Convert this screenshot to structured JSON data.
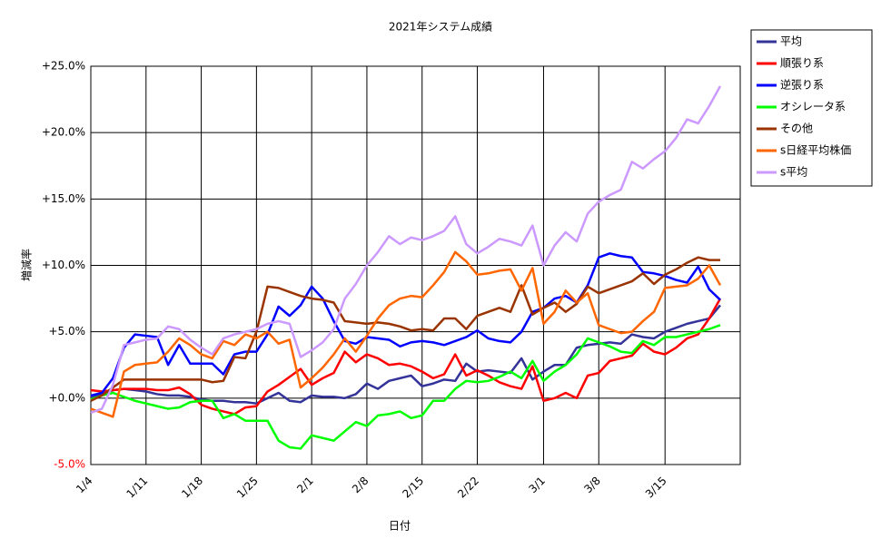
{
  "chart_data": {
    "type": "line",
    "title": "2021年システム成績",
    "x_label": "日付",
    "y_label": "増減率",
    "categories": [
      "1/4",
      null,
      null,
      null,
      null,
      "1/11",
      null,
      null,
      null,
      null,
      "1/18",
      null,
      null,
      null,
      null,
      "1/25",
      null,
      null,
      null,
      null,
      "2/1",
      null,
      null,
      null,
      null,
      "2/8",
      null,
      null,
      null,
      null,
      "2/15",
      null,
      null,
      null,
      null,
      "2/22",
      null,
      null,
      null,
      null,
      null,
      "3/1",
      null,
      null,
      null,
      null,
      "3/8",
      null,
      null,
      null,
      null,
      null,
      "3/15",
      null,
      null,
      null,
      null,
      null
    ],
    "ylim": [
      -5,
      25
    ],
    "yticks": [
      {
        "value": -5,
        "label": "-5.0%"
      },
      {
        "value": 0,
        "label": "+0.0%"
      },
      {
        "value": 5,
        "label": "+5.0%"
      },
      {
        "value": 10,
        "label": "+10.0%"
      },
      {
        "value": 15,
        "label": "+15.0%"
      },
      {
        "value": 20,
        "label": "+20.0%"
      },
      {
        "value": 25,
        "label": "+25.0%"
      }
    ],
    "negative_label_color": "#ff0000",
    "grid": true,
    "legend": "right",
    "series": [
      {
        "name": "平均",
        "color": "#333399",
        "values": [
          0,
          0.3,
          0.6,
          0.7,
          0.6,
          0.5,
          0.3,
          0.2,
          0.2,
          0.1,
          -0.1,
          -0.2,
          -0.2,
          -0.3,
          -0.3,
          -0.4,
          0,
          0.4,
          -0.2,
          -0.3,
          0.2,
          0.1,
          0.1,
          0,
          0.3,
          1.1,
          0.7,
          1.3,
          1.5,
          1.7,
          0.9,
          1.1,
          1.4,
          1.3,
          2.6,
          2.0,
          2.1,
          2.0,
          1.9,
          3.0,
          1.4,
          2.0,
          2.5,
          2.5,
          3.8,
          4.0,
          4.1,
          4.2,
          4.1,
          4.8,
          4.6,
          4.5,
          5.0,
          5.3,
          5.6,
          5.8,
          6.0,
          7.0
        ]
      },
      {
        "name": "順張り系",
        "color": "#ff0000",
        "values": [
          0.6,
          0.5,
          0.6,
          0.7,
          0.7,
          0.7,
          0.6,
          0.6,
          0.8,
          0.3,
          -0.5,
          -0.8,
          -1.0,
          -1.2,
          -0.7,
          -0.6,
          0.5,
          1.0,
          1.6,
          2.2,
          1.0,
          1.5,
          1.9,
          3.5,
          2.7,
          3.3,
          3.0,
          2.5,
          2.6,
          2.4,
          2.0,
          1.5,
          1.8,
          3.3,
          1.7,
          2.1,
          1.7,
          1.2,
          0.9,
          0.7,
          2.4,
          -0.2,
          0.0,
          0.4,
          0.0,
          1.7,
          1.9,
          2.8,
          3.0,
          3.2,
          4.1,
          3.5,
          3.3,
          3.8,
          4.5,
          4.8,
          6.0,
          7.5
        ]
      },
      {
        "name": "逆張り系",
        "color": "#0000ff",
        "values": [
          0.2,
          0.4,
          1.5,
          3.8,
          4.8,
          4.7,
          4.6,
          2.5,
          4.0,
          2.6,
          2.6,
          2.6,
          1.8,
          3.3,
          3.5,
          3.5,
          4.8,
          6.9,
          6.2,
          7.0,
          8.4,
          7.5,
          5.8,
          4.3,
          4.1,
          4.6,
          4.5,
          4.4,
          3.9,
          4.2,
          4.3,
          4.2,
          4.0,
          4.3,
          4.6,
          5.1,
          4.5,
          4.3,
          4.2,
          5.0,
          6.5,
          6.8,
          7.5,
          7.7,
          7.2,
          8.5,
          10.6,
          10.9,
          10.7,
          10.6,
          9.5,
          9.4,
          9.2,
          8.9,
          8.7,
          9.9,
          8.2,
          7.4
        ]
      },
      {
        "name": "オシレータ系",
        "color": "#00ff00",
        "values": [
          -0.1,
          0.2,
          0.4,
          0.1,
          -0.2,
          -0.4,
          -0.6,
          -0.8,
          -0.7,
          -0.3,
          -0.2,
          -0.2,
          -1.5,
          -1.2,
          -1.7,
          -1.7,
          -1.7,
          -3.2,
          -3.7,
          -3.8,
          -2.8,
          -3.0,
          -3.2,
          -2.5,
          -1.8,
          -2.1,
          -1.3,
          -1.2,
          -1.0,
          -1.5,
          -1.3,
          -0.2,
          -0.2,
          0.7,
          1.3,
          1.2,
          1.3,
          1.6,
          2.0,
          1.5,
          2.8,
          1.3,
          2.0,
          2.5,
          3.3,
          4.5,
          4.2,
          3.9,
          3.5,
          3.4,
          4.3,
          4.0,
          4.6,
          4.6,
          4.8,
          5.0,
          5.2,
          5.5
        ]
      },
      {
        "name": "その他",
        "color": "#993300",
        "values": [
          -0.2,
          0.2,
          0.8,
          1.4,
          1.4,
          1.4,
          1.4,
          1.4,
          1.4,
          1.4,
          1.4,
          1.2,
          1.3,
          3.1,
          3.0,
          5.0,
          8.4,
          8.3,
          8.0,
          7.7,
          7.5,
          7.4,
          7.2,
          5.8,
          5.7,
          5.6,
          5.7,
          5.6,
          5.4,
          5.1,
          5.2,
          5.1,
          6.0,
          6.0,
          5.2,
          6.2,
          6.5,
          6.8,
          6.5,
          8.5,
          6.3,
          6.8,
          7.2,
          6.5,
          7.1,
          8.4,
          7.9,
          8.2,
          8.5,
          8.8,
          9.4,
          8.6,
          9.3,
          9.7,
          10.2,
          10.6,
          10.4,
          10.4
        ]
      },
      {
        "name": "s日経平均株価",
        "color": "#ff6600",
        "values": [
          -0.8,
          -1.1,
          -1.4,
          2.0,
          2.5,
          2.6,
          2.7,
          3.5,
          4.5,
          4.0,
          3.3,
          3.0,
          4.3,
          4.0,
          4.8,
          4.5,
          5.0,
          4.1,
          4.4,
          0.8,
          1.5,
          2.3,
          3.3,
          4.5,
          3.5,
          4.7,
          6.0,
          7.0,
          7.5,
          7.7,
          7.6,
          8.5,
          9.5,
          11.0,
          10.3,
          9.3,
          9.4,
          9.6,
          9.7,
          8.1,
          9.8,
          5.6,
          6.5,
          8.1,
          7.2,
          7.9,
          5.5,
          5.2,
          4.9,
          5.0,
          5.8,
          6.5,
          8.3,
          8.4,
          8.5,
          9.0,
          10.0,
          8.5
        ]
      },
      {
        "name": "s平均",
        "color": "#cc99ff",
        "values": [
          -1.1,
          -0.8,
          1.0,
          4.0,
          4.2,
          4.4,
          4.5,
          5.4,
          5.2,
          4.4,
          3.8,
          3.3,
          4.5,
          4.8,
          5.0,
          5.2,
          5.6,
          5.8,
          5.6,
          3.1,
          3.6,
          4.2,
          5.2,
          7.5,
          8.6,
          10.0,
          11.0,
          12.2,
          11.6,
          12.1,
          11.9,
          12.2,
          12.6,
          13.7,
          11.6,
          10.9,
          11.4,
          12.0,
          11.8,
          11.5,
          13.0,
          10.0,
          11.5,
          12.5,
          11.8,
          13.9,
          14.8,
          15.3,
          15.7,
          17.8,
          17.3,
          18.0,
          18.6,
          19.6,
          21.0,
          20.7,
          22.0,
          23.5
        ]
      }
    ]
  }
}
